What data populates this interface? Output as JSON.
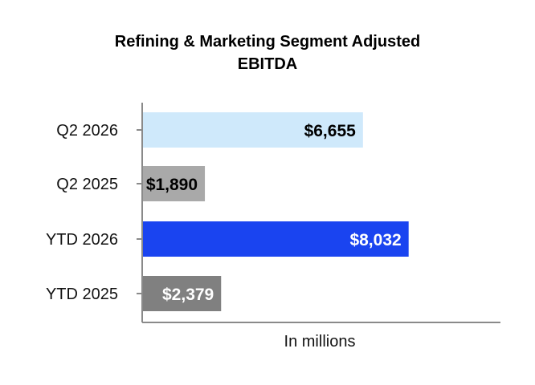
{
  "chart_data": {
    "type": "bar",
    "orientation": "horizontal",
    "title": "Refining & Marketing Segment Adjusted\nEBITDA",
    "xlabel": "In millions",
    "ylabel": "",
    "categories": [
      "Q2 2026",
      "Q2 2025",
      "YTD 2026",
      "YTD 2025"
    ],
    "values": [
      6655,
      1890,
      8032,
      2379
    ],
    "value_labels": [
      "$6,655",
      "$1,890",
      "$8,032",
      "$2,379"
    ],
    "bar_colors": [
      "#cfe9fb",
      "#a9a9a9",
      "#1a44f0",
      "#808080"
    ],
    "label_colors": [
      "#000000",
      "#000000",
      "#ffffff",
      "#ffffff"
    ],
    "xlim": [
      0,
      10800
    ],
    "grid": false,
    "legend": "none"
  }
}
